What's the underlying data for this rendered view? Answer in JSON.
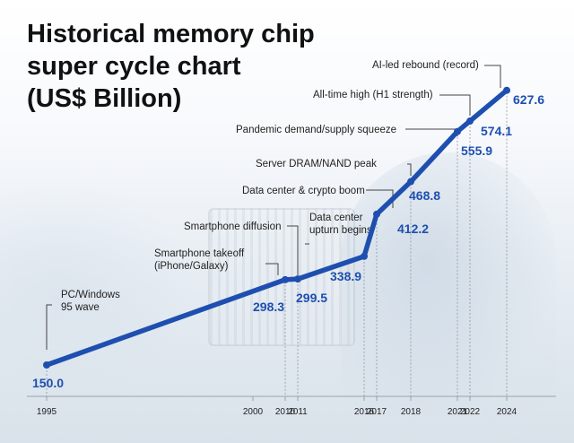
{
  "chart_data": {
    "type": "line",
    "title_lines": [
      "Historical memory chip",
      "super cycle chart",
      "(US$ Billion)"
    ],
    "x": [
      "1995",
      "2000",
      "2010",
      "2011",
      "2016",
      "2017",
      "2018",
      "2021",
      "2022",
      "2024"
    ],
    "series": [
      {
        "values": [
          150.0,
          null,
          298.3,
          299.5,
          338.9,
          412.2,
          468.8,
          555.9,
          574.1,
          627.6
        ]
      }
    ],
    "value_labels": [
      "150.0",
      "",
      "298.3",
      "299.5",
      "338.9",
      "412.2",
      "468.8",
      "555.9",
      "574.1",
      "627.6"
    ],
    "annotations": [
      {
        "index": 0,
        "lines": [
          "PC/Windows",
          "95 wave"
        ]
      },
      {
        "index": 2,
        "lines": [
          "Smartphone takeoff",
          "(iPhone/Galaxy)"
        ]
      },
      {
        "index": 3,
        "lines": [
          "Smartphone diffusion"
        ]
      },
      {
        "index": 4,
        "lines": [
          "Data center",
          "upturn begins"
        ]
      },
      {
        "index": 5,
        "lines": [
          "Data center & crypto boom"
        ]
      },
      {
        "index": 6,
        "lines": [
          "Server DRAM/NAND peak"
        ]
      },
      {
        "index": 7,
        "lines": [
          "Pandemic demand/supply squeeze"
        ]
      },
      {
        "index": 8,
        "lines": [
          "All-time high (H1 strength)"
        ]
      },
      {
        "index": 9,
        "lines": [
          "AI-led rebound (record)"
        ]
      }
    ],
    "line_color": "#1e4fb0",
    "label_color": "#1e4fb0",
    "grid": false,
    "legend": "none"
  }
}
